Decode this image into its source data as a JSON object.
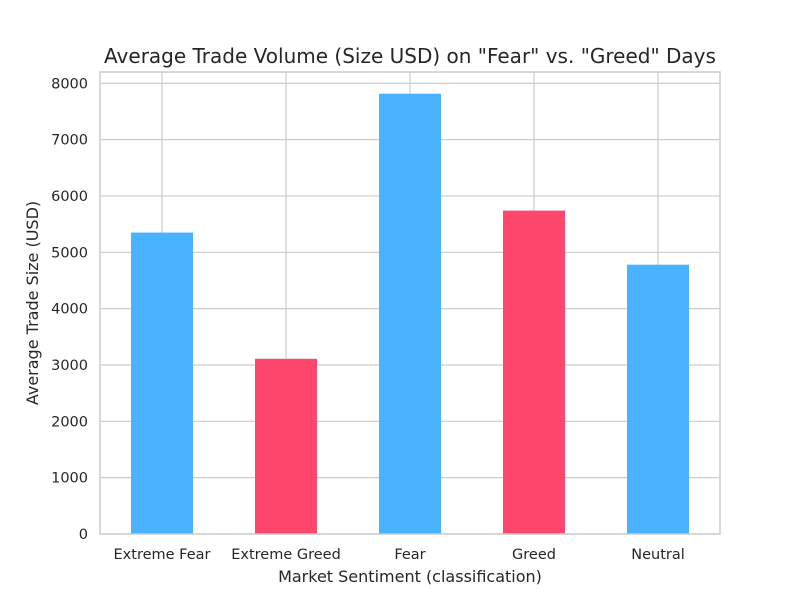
{
  "chart_data": {
    "type": "bar",
    "title": "Average Trade Volume (Size USD) on \"Fear\" vs. \"Greed\" Days",
    "xlabel": "Market Sentiment (classification)",
    "ylabel": "Average Trade Size (USD)",
    "categories": [
      "Extreme Fear",
      "Extreme Greed",
      "Fear",
      "Greed",
      "Neutral"
    ],
    "values": [
      5350,
      3110,
      7815,
      5740,
      4780
    ],
    "bar_colors": [
      "#4ab3ff",
      "#ff476e",
      "#4ab3ff",
      "#ff476e",
      "#4ab3ff"
    ],
    "ylim": [
      0,
      8200
    ],
    "yticks": [
      0,
      1000,
      2000,
      3000,
      4000,
      5000,
      6000,
      7000,
      8000
    ],
    "grid": true,
    "legend": false
  }
}
